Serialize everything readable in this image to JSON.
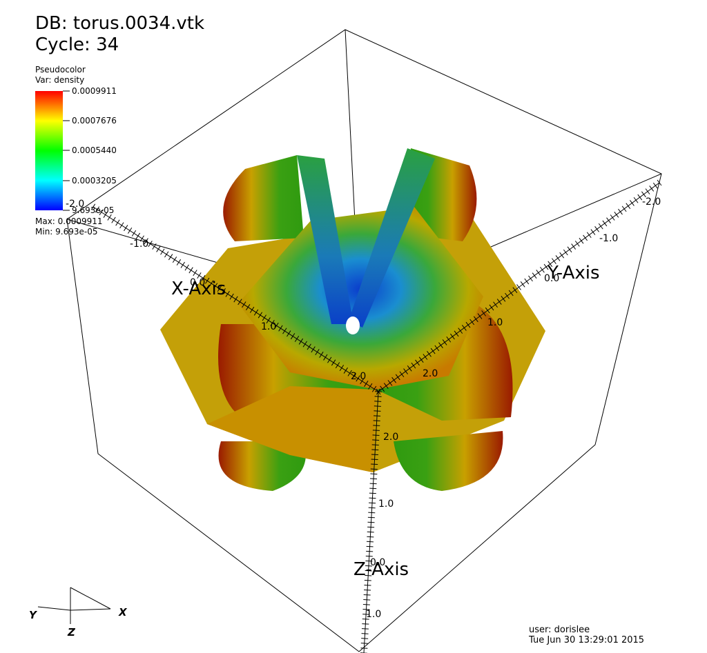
{
  "header": {
    "database": "DB: torus.0034.vtk",
    "cycle": "Cycle: 34"
  },
  "legend": {
    "plot": "Pseudocolor",
    "variable": "Var: density",
    "labels": [
      "0.0009911",
      "0.0007676",
      "0.0005440",
      "0.0003205",
      "9.693e-05"
    ],
    "max": "Max: 0.0009911",
    "min": "Min: 9.693e-05"
  },
  "axes": {
    "x": {
      "title": "X-Axis",
      "ticks": [
        "-2.0",
        "-1.0",
        "0.0",
        "1.0",
        "2.0"
      ]
    },
    "y": {
      "title": "Y-Axis",
      "ticks": [
        "-2.0",
        "-1.0",
        "0.0",
        "1.0",
        "2.0"
      ]
    },
    "z": {
      "title": "Z-Axis",
      "ticks": [
        "2.0",
        "1.0",
        "0.0",
        "1.0"
      ]
    }
  },
  "triad": {
    "x": "X",
    "y": "Y",
    "z": "Z"
  },
  "footer": {
    "user": "user: dorislee",
    "date": "Tue Jun 30 13:29:01 2015"
  }
}
